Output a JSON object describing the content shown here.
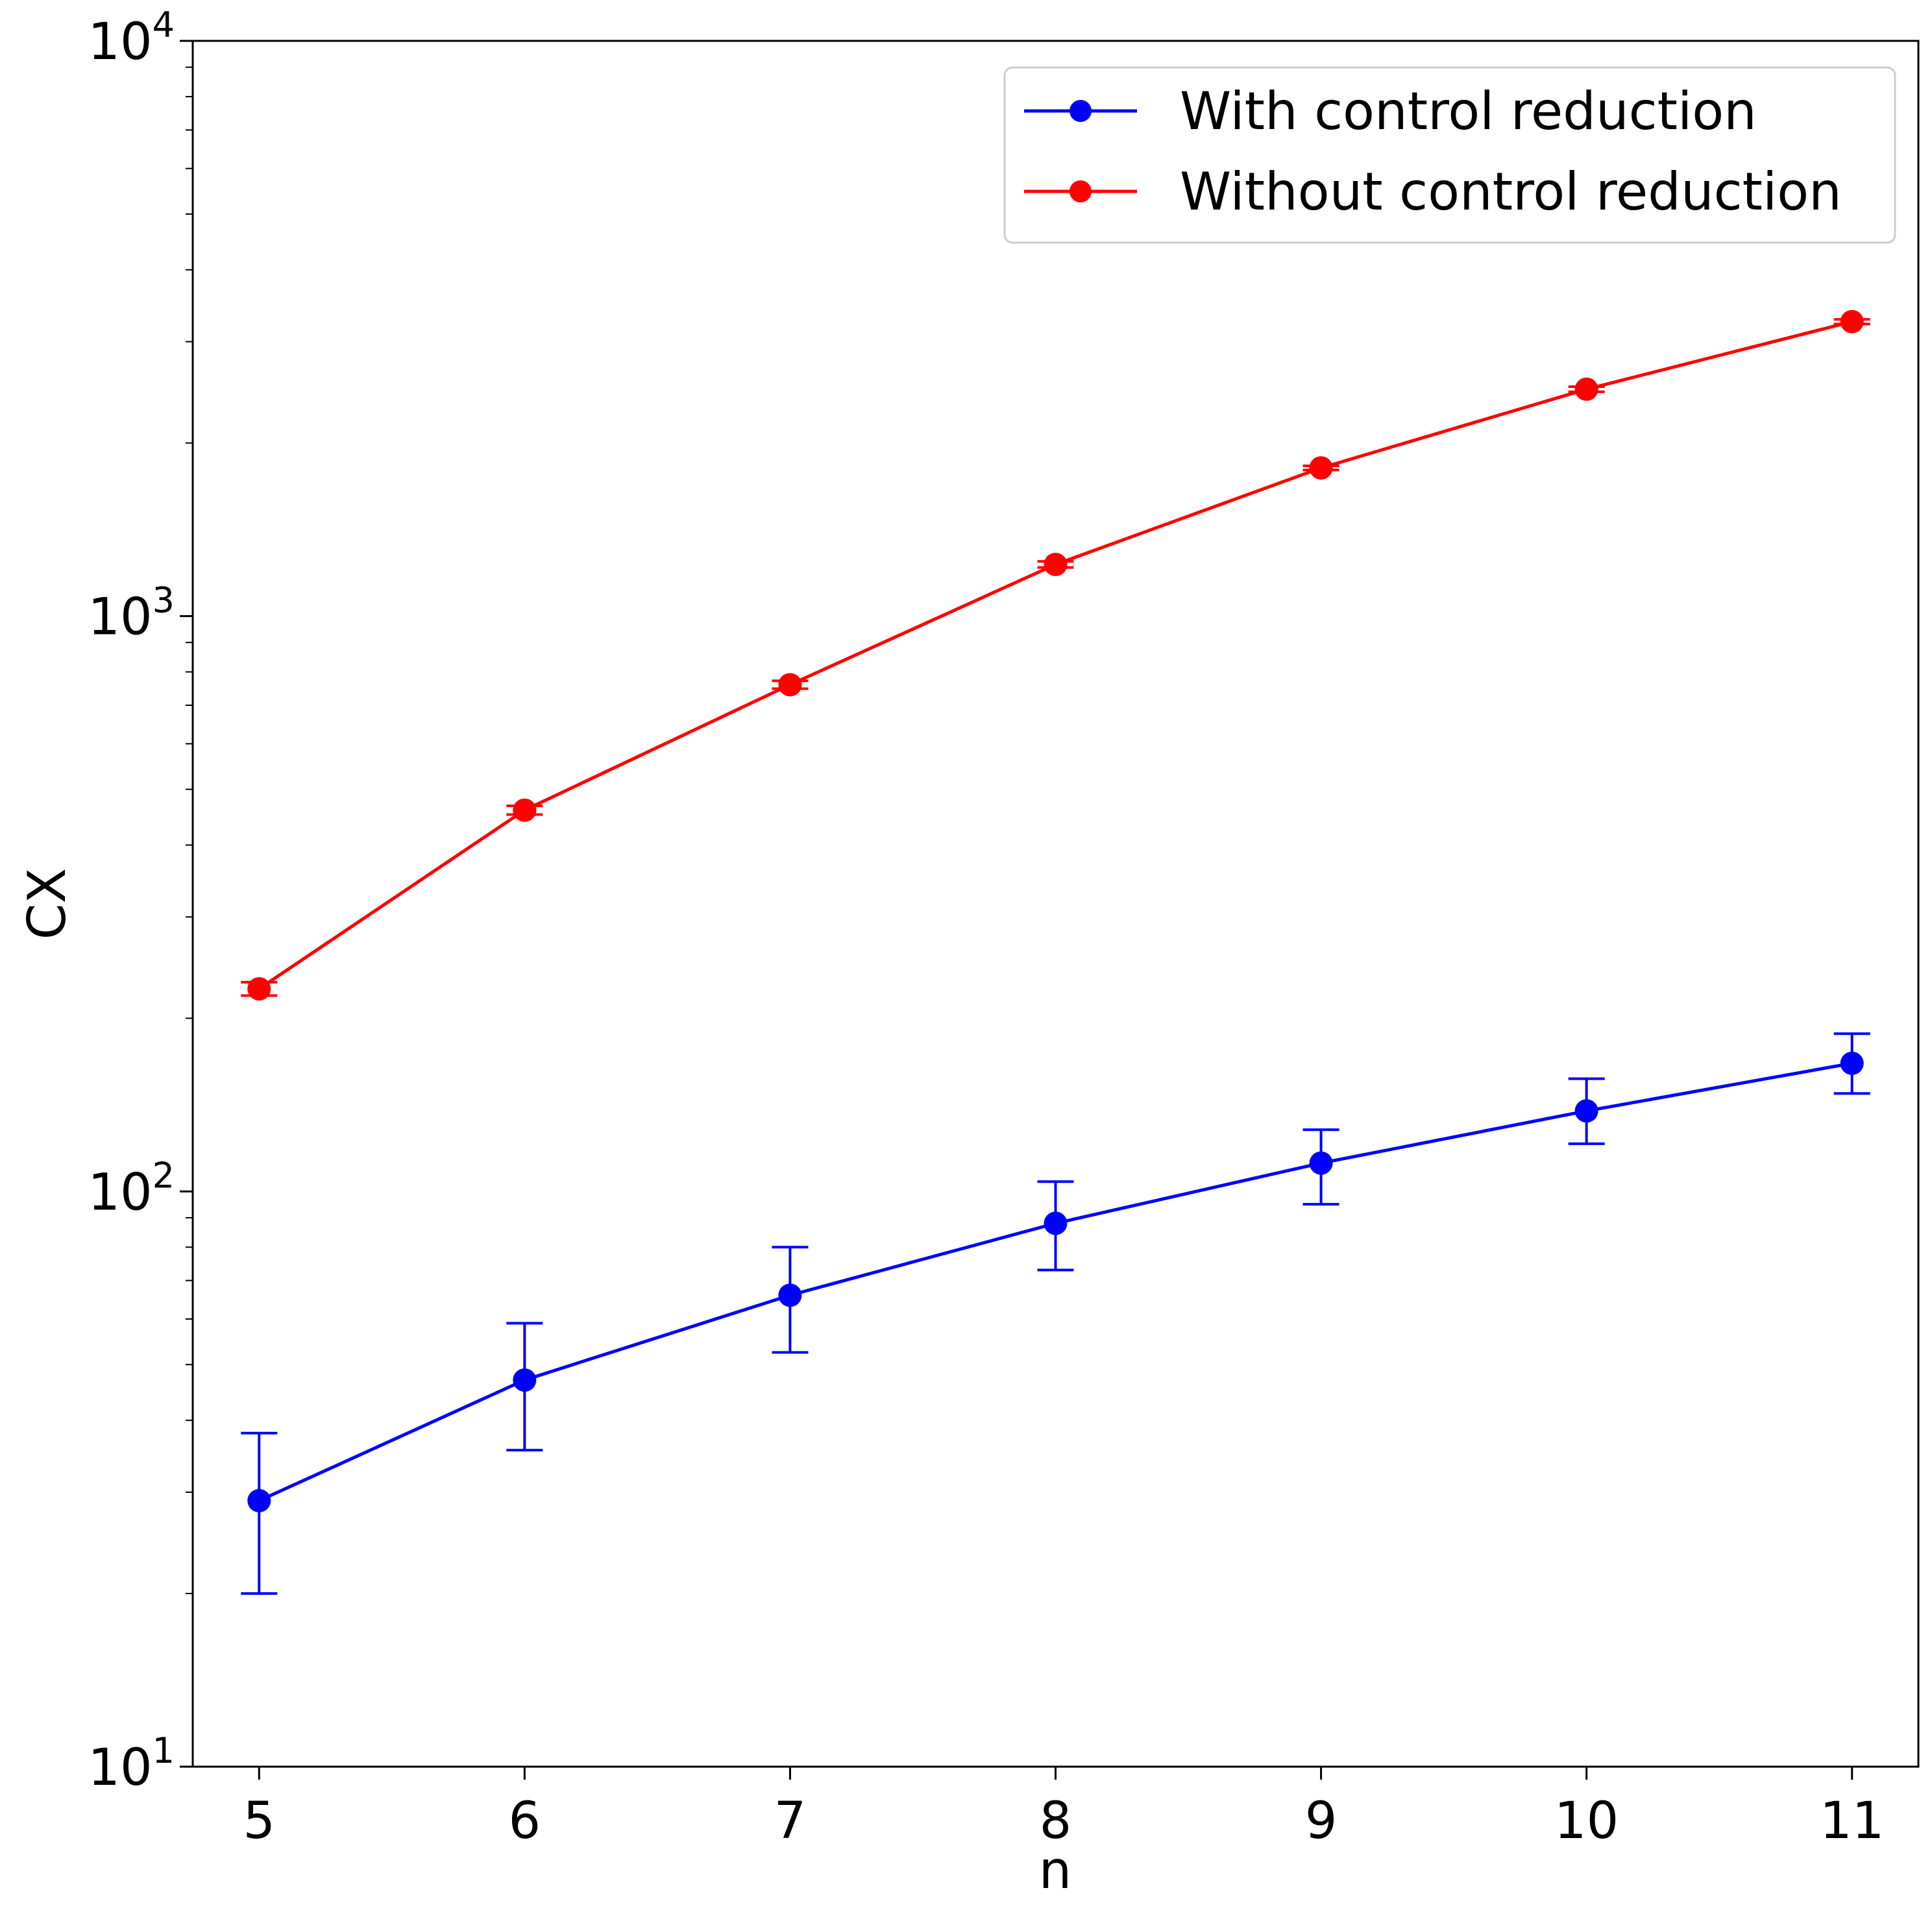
{
  "chart_data": {
    "type": "line",
    "xlabel": "n",
    "ylabel": "CX",
    "yscale": "log",
    "x": [
      5,
      6,
      7,
      8,
      9,
      10,
      11
    ],
    "xlim": [
      4.75,
      11.25
    ],
    "ylim": [
      10,
      10000
    ],
    "xticks": [
      "5",
      "6",
      "7",
      "8",
      "9",
      "10",
      "11"
    ],
    "yticks": [
      {
        "value": 10,
        "base": "10",
        "exp": "1"
      },
      {
        "value": 100,
        "base": "10",
        "exp": "2"
      },
      {
        "value": 1000,
        "base": "10",
        "exp": "3"
      },
      {
        "value": 10000,
        "base": "10",
        "exp": "4"
      }
    ],
    "grid": false,
    "legend_position": "top-right",
    "series": [
      {
        "name": "With control reduction",
        "color": "#0000ff",
        "values": [
          29,
          47,
          66,
          88,
          112,
          138,
          167
        ],
        "err_low": [
          20,
          35.5,
          52.5,
          73,
          95,
          121,
          148
        ],
        "err_high": [
          38,
          59,
          80,
          104,
          128,
          157,
          188
        ]
      },
      {
        "name": "Without control reduction",
        "color": "#ff0000",
        "values": [
          225,
          460,
          760,
          1230,
          1810,
          2480,
          3250
        ],
        "err_low": [
          219,
          452,
          748,
          1215,
          1795,
          2455,
          3220
        ],
        "err_high": [
          231,
          468,
          772,
          1245,
          1825,
          2505,
          3280
        ]
      }
    ]
  }
}
